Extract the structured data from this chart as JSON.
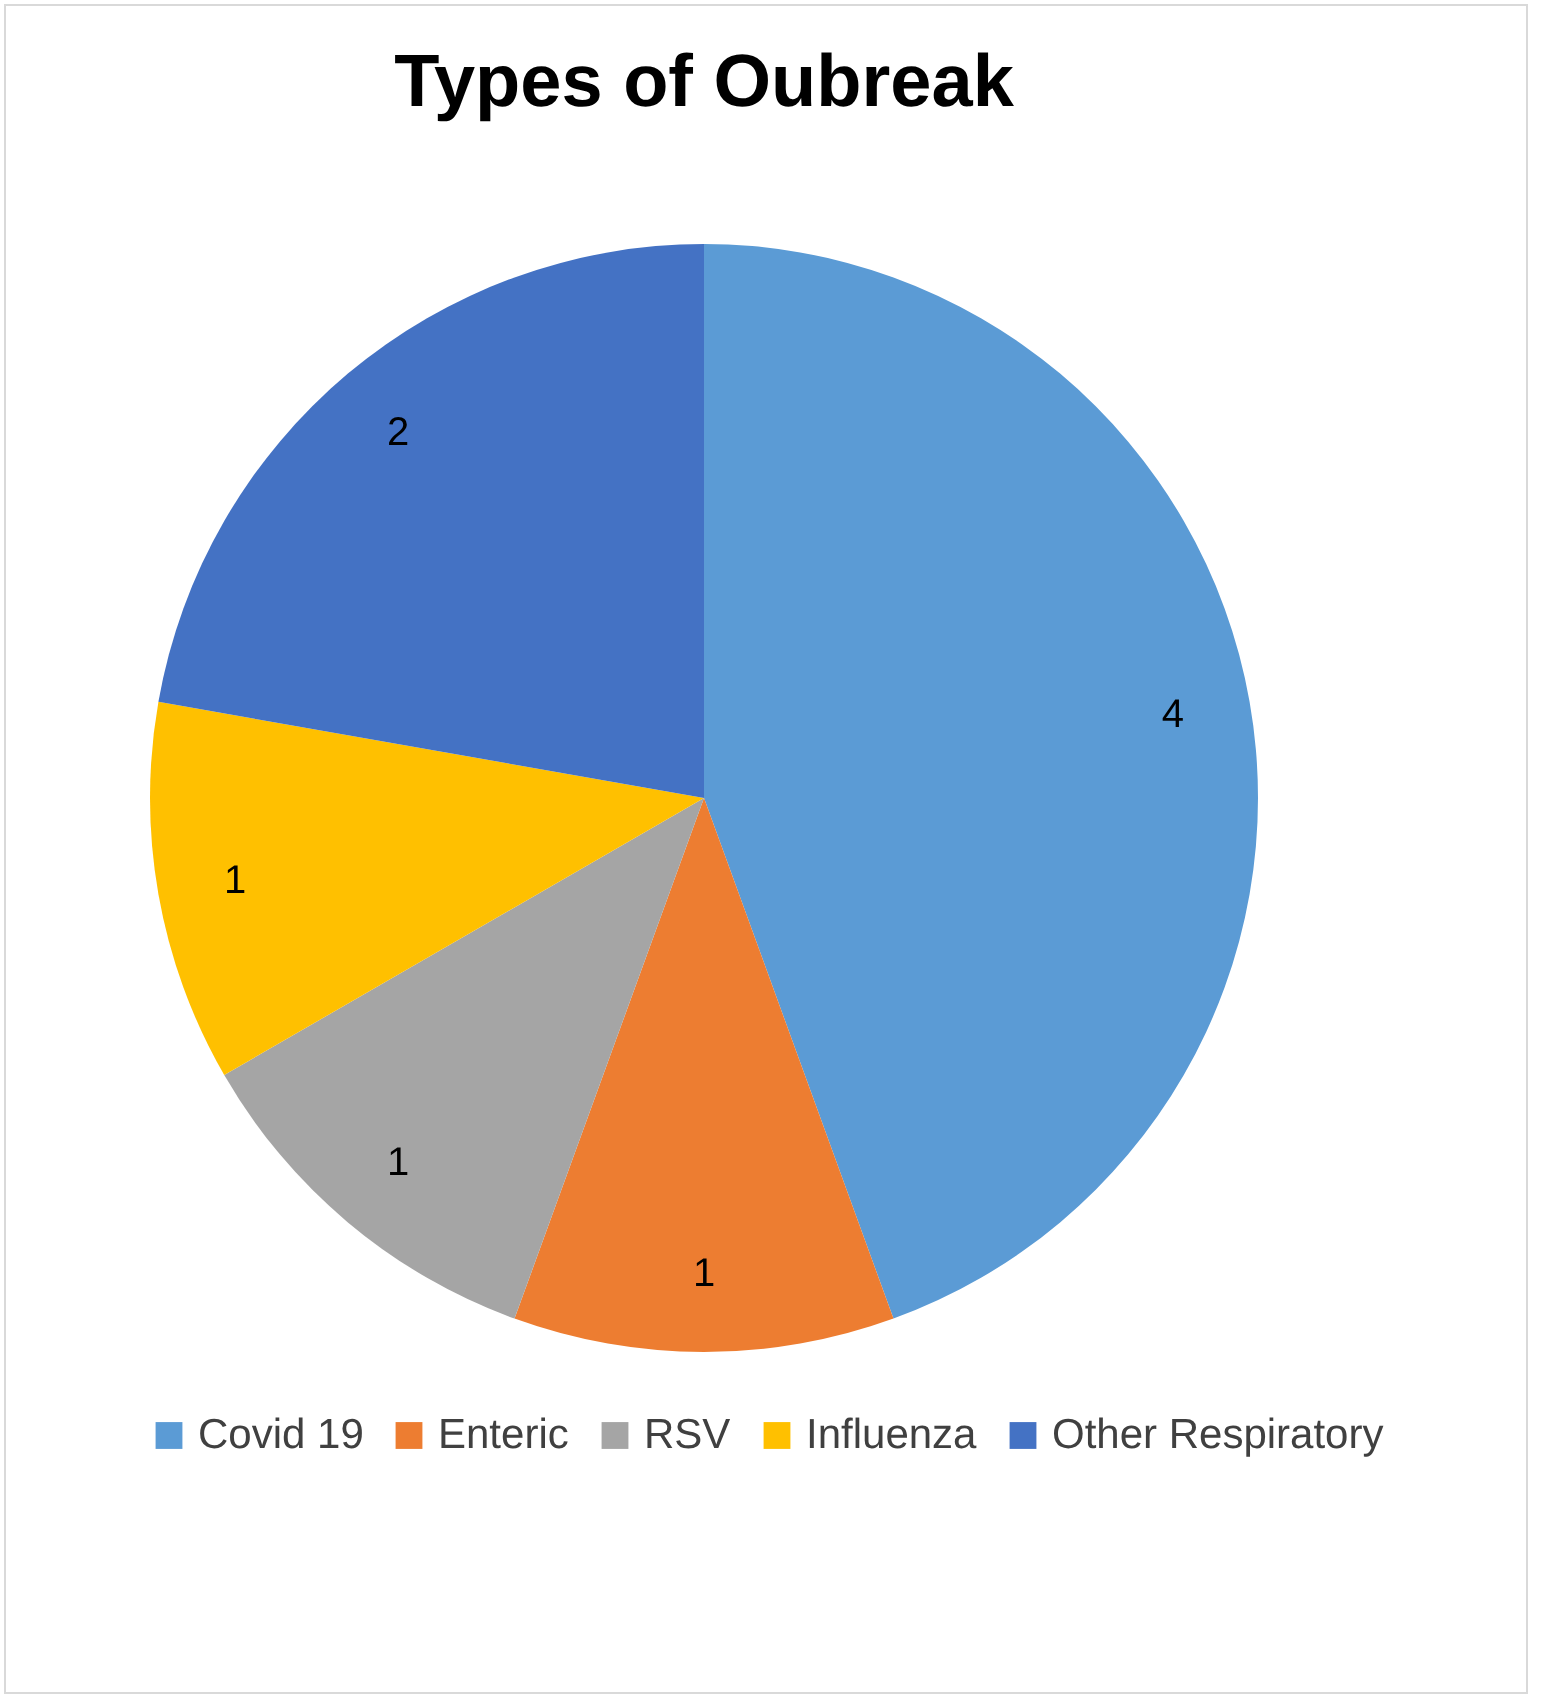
{
  "chart_data": {
    "type": "pie",
    "title": "Types of  Oubreak",
    "categories": [
      "Covid 19",
      "Enteric",
      "RSV",
      "Influenza",
      "Other Respiratory"
    ],
    "values": [
      4,
      1,
      1,
      1,
      2
    ],
    "colors": [
      "#5b9bd5",
      "#ed7d31",
      "#a5a5a5",
      "#ffc000",
      "#4472c4"
    ],
    "data_labels": true,
    "legend": "bottom"
  }
}
